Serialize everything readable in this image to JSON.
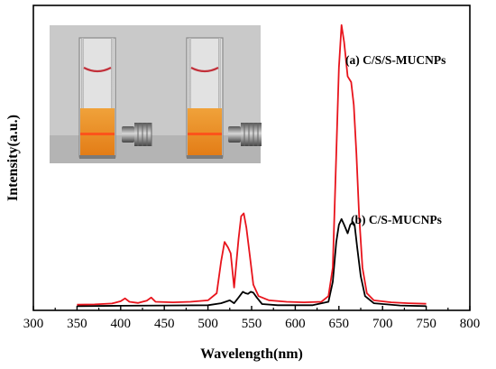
{
  "chart_data": {
    "type": "line",
    "xlabel": "Wavelength(nm)",
    "ylabel": "Intensity(a.u.)",
    "xlim": [
      300,
      800
    ],
    "xticks": [
      300,
      350,
      400,
      450,
      500,
      550,
      600,
      650,
      700,
      750,
      800
    ],
    "ylim": [
      0,
      1.05
    ],
    "y_ticks_shown": false,
    "grid": false,
    "series": [
      {
        "name": "(a) C/S/S-MUCNPs",
        "color": "#e8141c",
        "points": [
          [
            350,
            0.02
          ],
          [
            370,
            0.021
          ],
          [
            390,
            0.024
          ],
          [
            400,
            0.032
          ],
          [
            405,
            0.042
          ],
          [
            410,
            0.03
          ],
          [
            420,
            0.026
          ],
          [
            430,
            0.034
          ],
          [
            435,
            0.045
          ],
          [
            440,
            0.03
          ],
          [
            460,
            0.028
          ],
          [
            480,
            0.03
          ],
          [
            500,
            0.035
          ],
          [
            510,
            0.06
          ],
          [
            515,
            0.17
          ],
          [
            519,
            0.24
          ],
          [
            523,
            0.22
          ],
          [
            526,
            0.2
          ],
          [
            530,
            0.08
          ],
          [
            535,
            0.25
          ],
          [
            538,
            0.33
          ],
          [
            541,
            0.34
          ],
          [
            544,
            0.29
          ],
          [
            548,
            0.19
          ],
          [
            552,
            0.09
          ],
          [
            558,
            0.05
          ],
          [
            570,
            0.035
          ],
          [
            590,
            0.03
          ],
          [
            610,
            0.028
          ],
          [
            630,
            0.03
          ],
          [
            638,
            0.05
          ],
          [
            643,
            0.15
          ],
          [
            647,
            0.55
          ],
          [
            650,
            0.85
          ],
          [
            653,
            1.0
          ],
          [
            656,
            0.94
          ],
          [
            660,
            0.82
          ],
          [
            664,
            0.8
          ],
          [
            667,
            0.72
          ],
          [
            670,
            0.55
          ],
          [
            673,
            0.34
          ],
          [
            677,
            0.15
          ],
          [
            682,
            0.06
          ],
          [
            690,
            0.035
          ],
          [
            710,
            0.028
          ],
          [
            730,
            0.025
          ],
          [
            750,
            0.023
          ]
        ]
      },
      {
        "name": "(b) C/S-MUCNPs",
        "color": "#000000",
        "points": [
          [
            350,
            0.015
          ],
          [
            400,
            0.016
          ],
          [
            450,
            0.017
          ],
          [
            500,
            0.018
          ],
          [
            515,
            0.025
          ],
          [
            520,
            0.03
          ],
          [
            525,
            0.035
          ],
          [
            530,
            0.025
          ],
          [
            535,
            0.045
          ],
          [
            540,
            0.065
          ],
          [
            543,
            0.06
          ],
          [
            546,
            0.058
          ],
          [
            549,
            0.065
          ],
          [
            552,
            0.062
          ],
          [
            556,
            0.045
          ],
          [
            562,
            0.022
          ],
          [
            580,
            0.018
          ],
          [
            620,
            0.018
          ],
          [
            638,
            0.03
          ],
          [
            643,
            0.1
          ],
          [
            647,
            0.24
          ],
          [
            650,
            0.3
          ],
          [
            653,
            0.32
          ],
          [
            656,
            0.3
          ],
          [
            660,
            0.27
          ],
          [
            663,
            0.3
          ],
          [
            666,
            0.31
          ],
          [
            668,
            0.3
          ],
          [
            671,
            0.22
          ],
          [
            675,
            0.12
          ],
          [
            680,
            0.05
          ],
          [
            690,
            0.025
          ],
          [
            720,
            0.017
          ],
          [
            750,
            0.015
          ]
        ]
      }
    ]
  }
}
